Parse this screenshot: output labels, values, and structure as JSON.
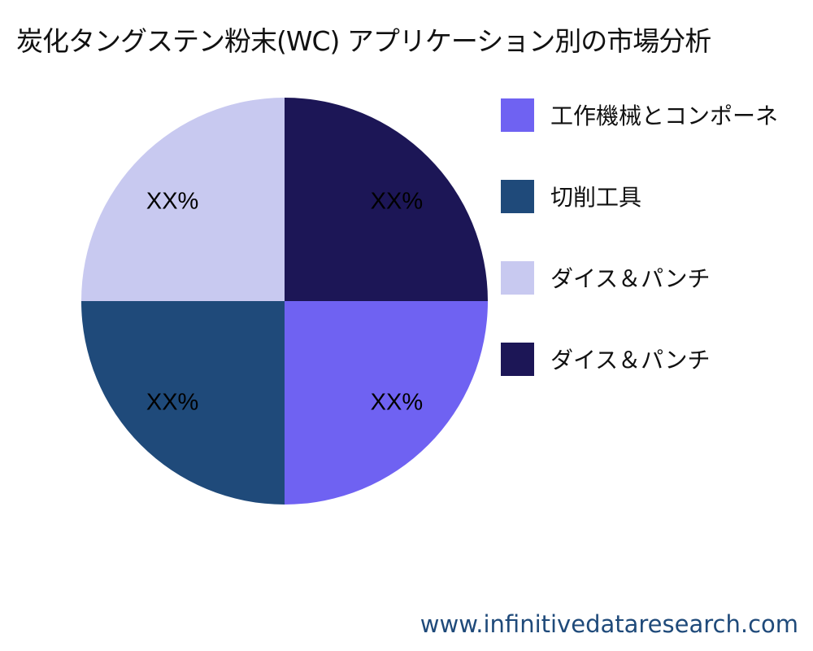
{
  "chart_data": {
    "type": "pie",
    "title": "炭化タングステン粉末(WC) アプリケーション別の市場分析",
    "start": "3 o'clock, clockwise",
    "slices": [
      {
        "label": "工作機械とコンポーネ",
        "value": 25,
        "display": "XX%",
        "color": "#6f62f2"
      },
      {
        "label": "切削工具",
        "value": 25,
        "display": "XX%",
        "color": "#1f4a7a"
      },
      {
        "label": "ダイス＆パンチ",
        "value": 25,
        "display": "XX%",
        "color": "#c8c9f0"
      },
      {
        "label": "ダイス＆パンチ",
        "value": 25,
        "display": "XX%",
        "color": "#1c1656"
      }
    ],
    "legend_placement": "right"
  },
  "footer": "www.infinitivedataresearch.com"
}
